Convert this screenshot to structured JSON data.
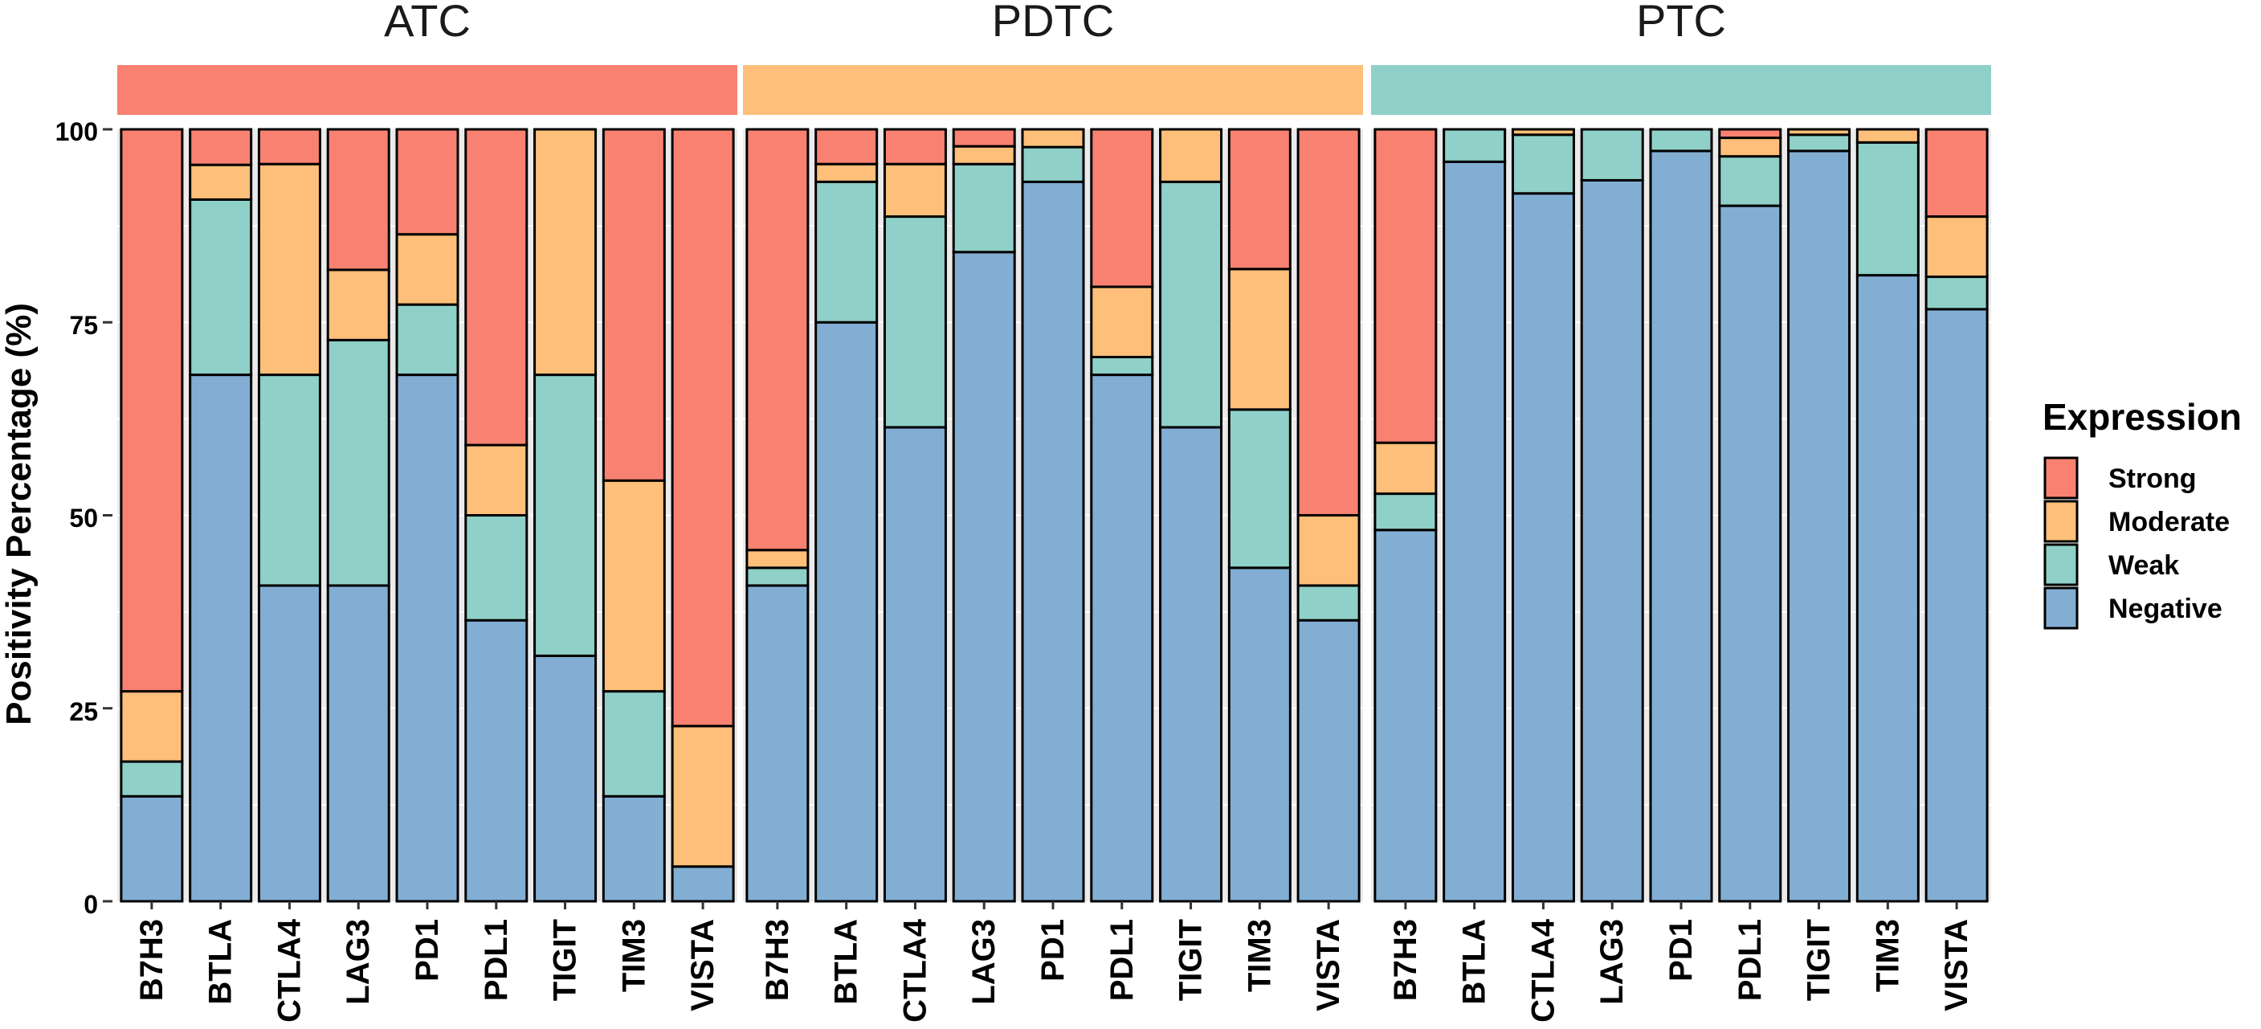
{
  "chart_data": {
    "type": "bar",
    "stacked": true,
    "ylabel": "Positivity Percentage (%)",
    "xlabel": "",
    "ylim": [
      0,
      100
    ],
    "yticks": [
      "0",
      "25",
      "50",
      "75",
      "100"
    ],
    "legend_title": "Expression",
    "legend_position": "right",
    "series": [
      {
        "name": "Negative",
        "color": "#82aed3"
      },
      {
        "name": "Weak",
        "color": "#8fd0c8"
      },
      {
        "name": "Moderate",
        "color": "#fdbf79"
      },
      {
        "name": "Strong",
        "color": "#f88171"
      }
    ],
    "legend_order": [
      "Strong",
      "Moderate",
      "Weak",
      "Negative"
    ],
    "categories": [
      "B7H3",
      "BTLA",
      "CTLA4",
      "LAG3",
      "PD1",
      "PDL1",
      "TIGIT",
      "TIM3",
      "VISTA"
    ],
    "facets": [
      {
        "name": "ATC",
        "strip_color": "#f88171",
        "bars": [
          {
            "Negative": 13.6,
            "Weak": 4.5,
            "Moderate": 9.1,
            "Strong": 72.8
          },
          {
            "Negative": 68.2,
            "Weak": 22.7,
            "Moderate": 4.5,
            "Strong": 4.6
          },
          {
            "Negative": 40.9,
            "Weak": 27.3,
            "Moderate": 27.3,
            "Strong": 4.5
          },
          {
            "Negative": 40.9,
            "Weak": 31.8,
            "Moderate": 9.1,
            "Strong": 18.2
          },
          {
            "Negative": 68.2,
            "Weak": 9.1,
            "Moderate": 9.1,
            "Strong": 13.6
          },
          {
            "Negative": 36.4,
            "Weak": 13.6,
            "Moderate": 9.1,
            "Strong": 40.9
          },
          {
            "Negative": 31.8,
            "Weak": 36.4,
            "Moderate": 31.8,
            "Strong": 0
          },
          {
            "Negative": 13.6,
            "Weak": 13.6,
            "Moderate": 27.3,
            "Strong": 45.5
          },
          {
            "Negative": 4.5,
            "Weak": 0,
            "Moderate": 18.2,
            "Strong": 77.3
          }
        ]
      },
      {
        "name": "PDTC",
        "strip_color": "#fdbf79",
        "bars": [
          {
            "Negative": 40.9,
            "Weak": 2.3,
            "Moderate": 2.3,
            "Strong": 54.5
          },
          {
            "Negative": 75.0,
            "Weak": 18.2,
            "Moderate": 2.3,
            "Strong": 4.5
          },
          {
            "Negative": 61.4,
            "Weak": 27.3,
            "Moderate": 6.8,
            "Strong": 4.5
          },
          {
            "Negative": 84.1,
            "Weak": 11.4,
            "Moderate": 2.3,
            "Strong": 2.2
          },
          {
            "Negative": 93.2,
            "Weak": 4.5,
            "Moderate": 2.3,
            "Strong": 0
          },
          {
            "Negative": 68.2,
            "Weak": 2.3,
            "Moderate": 9.1,
            "Strong": 20.4
          },
          {
            "Negative": 61.4,
            "Weak": 31.8,
            "Moderate": 6.8,
            "Strong": 0
          },
          {
            "Negative": 43.2,
            "Weak": 20.5,
            "Moderate": 18.2,
            "Strong": 18.1
          },
          {
            "Negative": 36.4,
            "Weak": 4.5,
            "Moderate": 9.1,
            "Strong": 50.0
          }
        ]
      },
      {
        "name": "PTC",
        "strip_color": "#8fd0c8",
        "bars": [
          {
            "Negative": 48.1,
            "Weak": 4.7,
            "Moderate": 6.6,
            "Strong": 40.6
          },
          {
            "Negative": 95.8,
            "Weak": 4.2,
            "Moderate": 0,
            "Strong": 0
          },
          {
            "Negative": 91.7,
            "Weak": 7.6,
            "Moderate": 0.7,
            "Strong": 0
          },
          {
            "Negative": 93.4,
            "Weak": 6.6,
            "Moderate": 0,
            "Strong": 0
          },
          {
            "Negative": 97.2,
            "Weak": 2.8,
            "Moderate": 0,
            "Strong": 0
          },
          {
            "Negative": 90.1,
            "Weak": 6.4,
            "Moderate": 2.4,
            "Strong": 1.1
          },
          {
            "Negative": 97.2,
            "Weak": 2.1,
            "Moderate": 0.7,
            "Strong": 0
          },
          {
            "Negative": 81.1,
            "Weak": 17.2,
            "Moderate": 1.7,
            "Strong": 0
          },
          {
            "Negative": 76.7,
            "Weak": 4.2,
            "Moderate": 7.8,
            "Strong": 11.3
          }
        ]
      }
    ]
  }
}
